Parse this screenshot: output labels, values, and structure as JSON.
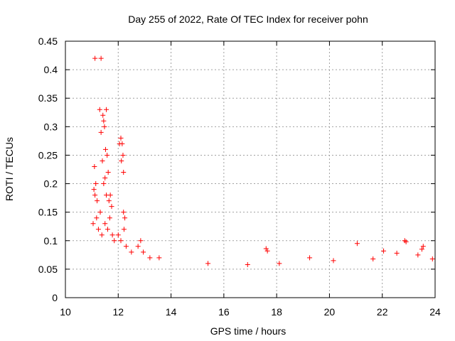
{
  "chart_data": {
    "type": "scatter",
    "title": "Day 255 of 2022, Rate Of TEC Index for receiver pohn",
    "xlabel": "GPS time / hours",
    "ylabel": "ROTI / TECUs",
    "xlim": [
      10,
      24
    ],
    "ylim": [
      0,
      0.45
    ],
    "xticks": [
      10,
      12,
      14,
      16,
      18,
      20,
      22,
      24
    ],
    "xtick_labels": [
      "10",
      "12",
      "14",
      "16",
      "18",
      "20",
      "22",
      "24"
    ],
    "yticks": [
      0,
      0.05,
      0.1,
      0.15,
      0.2,
      0.25,
      0.3,
      0.35,
      0.4,
      0.45
    ],
    "ytick_labels": [
      "0",
      "0.05",
      "0.1",
      "0.15",
      "0.2",
      "0.25",
      "0.3",
      "0.35",
      "0.4",
      "0.45"
    ],
    "grid": true,
    "marker": "plus",
    "color": "#ff0000",
    "series": [
      {
        "name": "ROTI",
        "points": [
          [
            11.12,
            0.42
          ],
          [
            11.35,
            0.42
          ],
          [
            11.3,
            0.33
          ],
          [
            11.42,
            0.32
          ],
          [
            11.45,
            0.31
          ],
          [
            11.55,
            0.33
          ],
          [
            11.35,
            0.29
          ],
          [
            11.48,
            0.3
          ],
          [
            12.05,
            0.27
          ],
          [
            12.1,
            0.28
          ],
          [
            12.15,
            0.27
          ],
          [
            12.12,
            0.24
          ],
          [
            12.18,
            0.25
          ],
          [
            12.2,
            0.22
          ],
          [
            11.52,
            0.26
          ],
          [
            11.58,
            0.25
          ],
          [
            11.4,
            0.24
          ],
          [
            11.62,
            0.22
          ],
          [
            11.5,
            0.21
          ],
          [
            11.1,
            0.23
          ],
          [
            11.15,
            0.2
          ],
          [
            11.08,
            0.19
          ],
          [
            11.12,
            0.18
          ],
          [
            11.2,
            0.17
          ],
          [
            11.45,
            0.2
          ],
          [
            11.55,
            0.18
          ],
          [
            11.65,
            0.17
          ],
          [
            11.7,
            0.18
          ],
          [
            11.75,
            0.16
          ],
          [
            12.2,
            0.15
          ],
          [
            12.25,
            0.14
          ],
          [
            12.22,
            0.12
          ],
          [
            11.05,
            0.13
          ],
          [
            11.18,
            0.14
          ],
          [
            11.25,
            0.12
          ],
          [
            11.32,
            0.15
          ],
          [
            11.38,
            0.11
          ],
          [
            11.5,
            0.13
          ],
          [
            11.6,
            0.12
          ],
          [
            11.68,
            0.14
          ],
          [
            11.78,
            0.11
          ],
          [
            11.85,
            0.1
          ],
          [
            12.0,
            0.11
          ],
          [
            12.1,
            0.1
          ],
          [
            12.3,
            0.09
          ],
          [
            12.5,
            0.08
          ],
          [
            12.75,
            0.09
          ],
          [
            12.85,
            0.1
          ],
          [
            12.95,
            0.08
          ],
          [
            13.2,
            0.07
          ],
          [
            13.55,
            0.07
          ],
          [
            17.6,
            0.086
          ],
          [
            17.65,
            0.082
          ],
          [
            19.25,
            0.07
          ],
          [
            21.05,
            0.095
          ],
          [
            22.05,
            0.082
          ],
          [
            22.85,
            0.1
          ],
          [
            22.9,
            0.098
          ],
          [
            22.55,
            0.078
          ],
          [
            23.5,
            0.085
          ],
          [
            23.55,
            0.09
          ],
          [
            23.35,
            0.075
          ],
          [
            23.9,
            0.068
          ],
          [
            20.15,
            0.065
          ],
          [
            21.65,
            0.068
          ],
          [
            18.1,
            0.06
          ],
          [
            15.4,
            0.06
          ],
          [
            16.9,
            0.058
          ]
        ]
      }
    ]
  }
}
